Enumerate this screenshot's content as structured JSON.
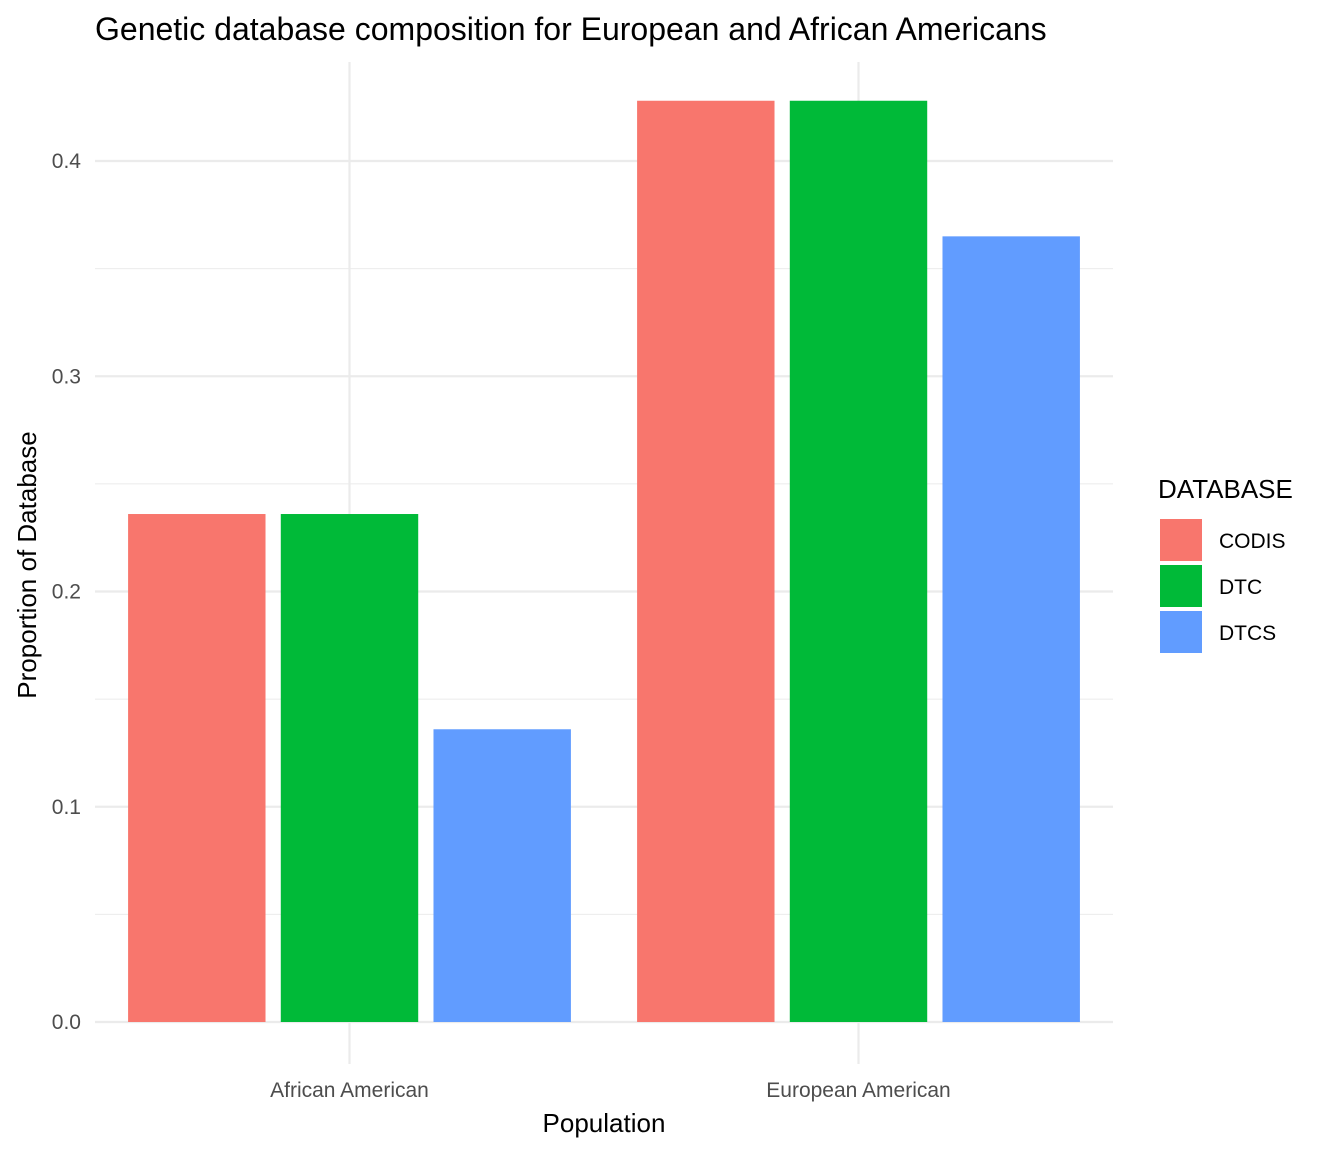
{
  "chart_data": {
    "type": "bar",
    "title": "Genetic database composition for European and African Americans",
    "xlabel": "Population",
    "ylabel": "Proportion of Database",
    "categories": [
      "African American",
      "European American"
    ],
    "series": [
      {
        "name": "CODIS",
        "color": "#F8766D",
        "values": [
          0.236,
          0.428
        ]
      },
      {
        "name": "DTC",
        "color": "#00BA38",
        "values": [
          0.236,
          0.428
        ]
      },
      {
        "name": "DTCS",
        "color": "#619CFF",
        "values": [
          0.136,
          0.365
        ]
      }
    ],
    "ylim": [
      0,
      0.446
    ],
    "yticks": [
      0.0,
      0.1,
      0.2,
      0.3,
      0.4
    ],
    "ytick_labels": [
      "0.0",
      "0.1",
      "0.2",
      "0.3",
      "0.4"
    ],
    "legend": {
      "title": "DATABASE",
      "position": "right"
    },
    "grid": true
  }
}
